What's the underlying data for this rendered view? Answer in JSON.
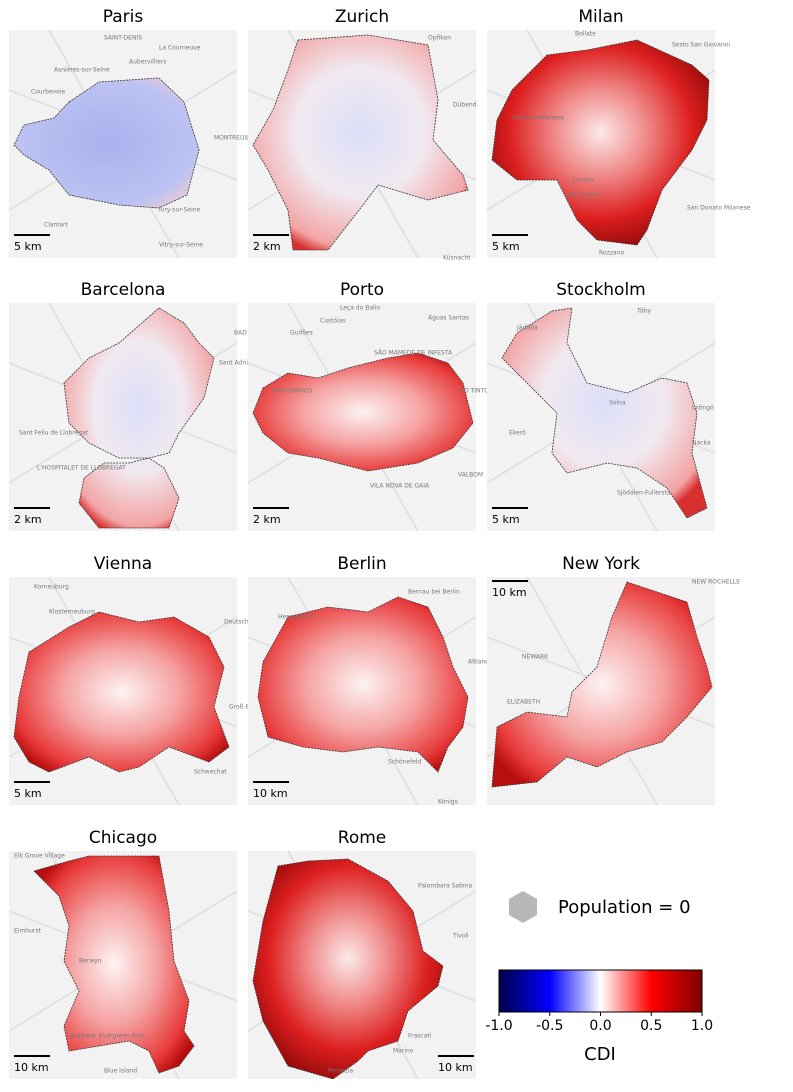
{
  "panels": [
    {
      "title": "Paris",
      "scale": "5 km",
      "places": [
        "SAINT-DENIS",
        "La Courneuve",
        "Aubervilliers",
        "Asnières-sur-Seine",
        "Courbevoie",
        "MONTREUIL",
        "Clamart",
        "Ivry-sur-Seine",
        "Vitry-sur-Seine"
      ]
    },
    {
      "title": "Zurich",
      "scale": "2 km",
      "places": [
        "Opfikon",
        "Dübend",
        "Küsnacht"
      ]
    },
    {
      "title": "Milan",
      "scale": "5 km",
      "places": [
        "Bollate",
        "Sesto San Giovanni",
        "Settimo Milanese",
        "Corsico",
        "Buccinasco",
        "San Donato Milanese",
        "Rozzano"
      ]
    },
    {
      "title": "Barcelona",
      "scale": "2 km",
      "places": [
        "BAD",
        "Sant Adrià de Besòs",
        "Sant Feliu de Llobregat",
        "L'HOSPITALET DE LLOBREGAT"
      ]
    },
    {
      "title": "Porto",
      "scale": "2 km",
      "places": [
        "Leça do Balio",
        "Águas Santas",
        "Custóias",
        "Guifões",
        "SÃO MAMEDE DE INFESTA",
        "MATOSINHOS",
        "RIO TINTO",
        "VILA NOVA DE GAIA",
        "VALBOM"
      ]
    },
    {
      "title": "Stockholm",
      "scale": "5 km",
      "places": [
        "Täby",
        "Järfälla",
        "Solna",
        "Lidingö",
        "Nacka",
        "Ekerö",
        "Sjödalen-Fullersta"
      ]
    },
    {
      "title": "Vienna",
      "scale": "5 km",
      "places": [
        "Korneuburg",
        "Klosterneuburg",
        "Deutsch-Wagram",
        "Groß-Enzersdorf",
        "Schwechat"
      ]
    },
    {
      "title": "Berlin",
      "scale": "10 km",
      "places": [
        "Bernau bei Berlin",
        "Hennigsdorf",
        "Altlandsberg",
        "Schönefeld",
        "Königs"
      ]
    },
    {
      "title": "New York",
      "scale": "10 km",
      "places": [
        "NEW ROCHELLE",
        "NEWARK",
        "ELIZABETH"
      ]
    },
    {
      "title": "Chicago",
      "scale": "10 km",
      "places": [
        "Elk Grove Village",
        "Elmhurst",
        "Berwyn",
        "Burbank",
        "Evergreen Park",
        "Blue Island"
      ]
    },
    {
      "title": "Rome",
      "scale": "10 km",
      "places": [
        "Palombara Sabina",
        "Tivoli",
        "Frascati",
        "Marino",
        "Pomezia"
      ]
    }
  ],
  "legend": {
    "label": "Population = 0"
  },
  "colorbar": {
    "range": [
      -1,
      1
    ],
    "ticks": [
      {
        "value": -1,
        "label": "-1.0"
      },
      -0.5,
      {
        "value": 0,
        "label": "0.0"
      },
      0.5,
      {
        "value": 1,
        "label": "1.0"
      }
    ],
    "label": "CDI"
  }
}
